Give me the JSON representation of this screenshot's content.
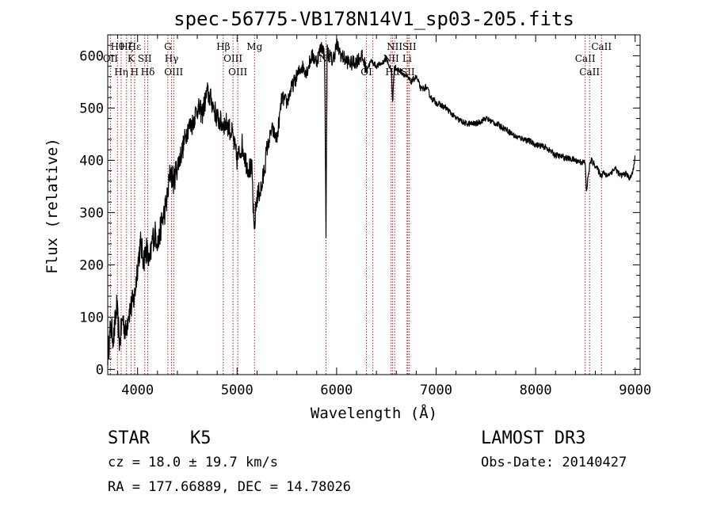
{
  "chart_data": {
    "type": "line",
    "title": "spec-56775-VB178N14V1_sp03-205.fits",
    "xlabel": "Wavelength (Å)",
    "ylabel": "Flux (relative)",
    "xlim": [
      3700,
      9050
    ],
    "ylim": [
      -10,
      640
    ],
    "xticks": [
      4000,
      5000,
      6000,
      7000,
      8000,
      9000
    ],
    "yticks": [
      0,
      100,
      200,
      300,
      400,
      500,
      600
    ],
    "line_color": "#000000",
    "marker_color": "#b22222",
    "series": [
      {
        "name": "flux",
        "x": [
          3700,
          3730,
          3760,
          3790,
          3820,
          3850,
          3880,
          3910,
          3940,
          3970,
          4000,
          4030,
          4060,
          4090,
          4120,
          4150,
          4180,
          4210,
          4240,
          4270,
          4300,
          4330,
          4360,
          4400,
          4450,
          4500,
          4550,
          4600,
          4650,
          4700,
          4750,
          4800,
          4850,
          4900,
          4950,
          5000,
          5050,
          5100,
          5150,
          5170,
          5185,
          5200,
          5250,
          5300,
          5350,
          5400,
          5450,
          5500,
          5550,
          5600,
          5650,
          5700,
          5750,
          5800,
          5850,
          5880,
          5893,
          5905,
          5930,
          5960,
          6000,
          6050,
          6100,
          6150,
          6200,
          6250,
          6300,
          6350,
          6400,
          6450,
          6500,
          6550,
          6563,
          6580,
          6600,
          6650,
          6700,
          6750,
          6800,
          6850,
          6900,
          6950,
          7000,
          7100,
          7200,
          7300,
          7400,
          7500,
          7600,
          7700,
          7800,
          7900,
          8000,
          8100,
          8200,
          8300,
          8400,
          8498,
          8510,
          8542,
          8560,
          8600,
          8662,
          8680,
          8700,
          8750,
          8800,
          8850,
          8900,
          8950,
          8980,
          9000
        ],
        "y": [
          30,
          80,
          60,
          120,
          50,
          100,
          70,
          110,
          120,
          140,
          200,
          240,
          210,
          230,
          200,
          250,
          260,
          240,
          280,
          300,
          330,
          380,
          360,
          390,
          420,
          460,
          470,
          500,
          490,
          530,
          510,
          480,
          470,
          470,
          450,
          400,
          430,
          390,
          380,
          260,
          300,
          330,
          350,
          420,
          460,
          440,
          520,
          510,
          540,
          560,
          580,
          570,
          600,
          590,
          620,
          600,
          260,
          610,
          600,
          590,
          620,
          600,
          590,
          585,
          590,
          600,
          575,
          590,
          580,
          585,
          595,
          570,
          510,
          580,
          575,
          570,
          560,
          550,
          560,
          535,
          540,
          520,
          510,
          500,
          480,
          470,
          470,
          480,
          470,
          460,
          445,
          440,
          430,
          425,
          410,
          405,
          400,
          395,
          340,
          390,
          400,
          390,
          370,
          380,
          370,
          375,
          385,
          370,
          375,
          365,
          380,
          410
        ]
      }
    ],
    "line_markers": [
      {
        "x": 3798,
        "label": "Hθ"
      },
      {
        "x": 3727,
        "label": "OII"
      },
      {
        "x": 3835,
        "label": "Hη"
      },
      {
        "x": 3889,
        "label": "Hζ"
      },
      {
        "x": 3934,
        "label": "K"
      },
      {
        "x": 3970,
        "label": "H"
      },
      {
        "x": 3970,
        "label": "Hε"
      },
      {
        "x": 4072,
        "label": "SII"
      },
      {
        "x": 4102,
        "label": "Hδ"
      },
      {
        "x": 4304,
        "label": "G"
      },
      {
        "x": 4341,
        "label": "Hγ"
      },
      {
        "x": 4363,
        "label": "OIII"
      },
      {
        "x": 4861,
        "label": "Hβ"
      },
      {
        "x": 4959,
        "label": "OIII"
      },
      {
        "x": 5007,
        "label": "OIII"
      },
      {
        "x": 5175,
        "label": "Mg"
      },
      {
        "x": 5893,
        "label": "Na"
      },
      {
        "x": 6300,
        "label": "OI"
      },
      {
        "x": 6364,
        "label": ""
      },
      {
        "x": 6548,
        "label": "NII"
      },
      {
        "x": 6563,
        "label": "Hα"
      },
      {
        "x": 6583,
        "label": "NII"
      },
      {
        "x": 6708,
        "label": "Li"
      },
      {
        "x": 6716,
        "label": "SII"
      },
      {
        "x": 6731,
        "label": "SII"
      },
      {
        "x": 8498,
        "label": "CaII"
      },
      {
        "x": 8542,
        "label": "CaII"
      },
      {
        "x": 8662,
        "label": "CaII"
      }
    ]
  },
  "footer": {
    "class_label": "STAR",
    "subclass_label": "K5",
    "cz_text": "cz = 18.0 ± 19.7 km/s",
    "radec_text": "RA = 177.66889, DEC =  14.78026",
    "survey_label": "LAMOST DR3",
    "obs_date_text": "Obs-Date: 20140427"
  }
}
